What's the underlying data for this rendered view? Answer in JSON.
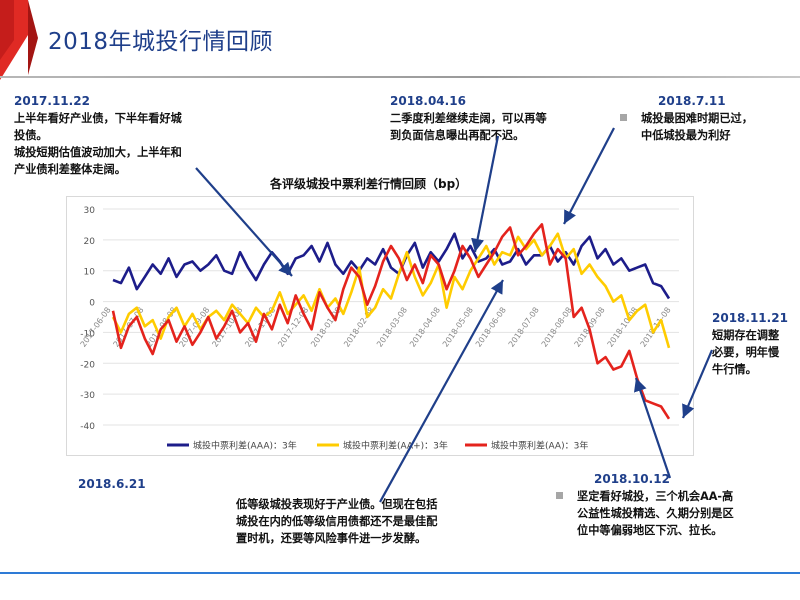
{
  "page": {
    "title": "2018年城投行情回顾"
  },
  "annotations": [
    {
      "id": "a1",
      "date": "2017.11.22",
      "lines": [
        "上半年看好产业债，下半年看好城",
        "投债。"
      ]
    },
    {
      "id": "a1b",
      "lines": [
        "城投短期估值波动加大，上半年和",
        "产业债利差整体走阔。"
      ]
    },
    {
      "id": "a2",
      "date": "2018.04.16",
      "lines": [
        "二季度利差继续走阔，可以再等",
        "到负面信息曝出再配不迟。"
      ]
    },
    {
      "id": "a3",
      "date": "2018.7.11",
      "lines": [
        "城投最困难时期已过，",
        "中低城投最为利好"
      ]
    },
    {
      "id": "a4",
      "date": "2018.11.21",
      "lines": [
        "短期存在调整",
        "必要，明年慢",
        "牛行情。"
      ]
    },
    {
      "id": "a5",
      "date": "2018.6.21",
      "lines": []
    },
    {
      "id": "a6",
      "lines": [
        "低等级城投表现好于产业债。但现在包括",
        "城投在内的低等级信用债都还不是最佳配",
        "置时机，还要等风险事件进一步发酵。"
      ]
    },
    {
      "id": "a7",
      "date": "2018.10.12",
      "lines": [
        "坚定看好城投，三个机会AA-高",
        "公益性城投精选、久期分别是区",
        "位中等偏弱地区下沉、拉长。"
      ]
    }
  ],
  "chart_data": {
    "type": "line",
    "title": "各评级城投中票利差行情回顾（bp）",
    "xlabel": "",
    "ylabel": "",
    "ylim": [
      -40,
      30
    ],
    "yticks": [
      30,
      20,
      10,
      0,
      -10,
      -20,
      -30,
      -40
    ],
    "xtick_labels": [
      "2017-06-08",
      "2017-07-08",
      "2017-08-08",
      "2017-09-08",
      "2017-10-08",
      "2017-11-08",
      "2017-12-08",
      "2018-01-08",
      "2018-02-08",
      "2018-03-08",
      "2018-04-08",
      "2018-05-08",
      "2018-06-08",
      "2018-07-08",
      "2018-08-08",
      "2018-09-08",
      "2018-10-08",
      "2018-11-08"
    ],
    "grid": true,
    "legend_position": "bottom",
    "series": [
      {
        "name": "城投中票利差(AAA)：3年",
        "color": "#1d1d8a",
        "values": [
          7,
          6,
          11,
          4,
          8,
          12,
          9,
          14,
          8,
          12,
          13,
          10,
          12,
          15,
          10,
          9,
          16,
          11,
          7,
          12,
          16,
          13,
          9,
          14,
          15,
          18,
          13,
          19,
          12,
          9,
          13,
          10,
          14,
          12,
          17,
          11,
          9,
          15,
          19,
          11,
          16,
          13,
          17,
          22,
          14,
          18,
          13,
          14,
          17,
          12,
          13,
          17,
          12,
          15,
          15,
          18,
          13,
          16,
          12,
          18,
          21,
          14,
          17,
          12,
          14,
          10,
          11,
          12,
          6,
          5,
          1
        ]
      },
      {
        "name": "城投中票利差(AA+)：3年",
        "color": "#ffcc00",
        "values": [
          -5,
          -10,
          -4,
          -2,
          -8,
          -6,
          -12,
          -5,
          -2,
          -8,
          -4,
          -9,
          -5,
          -3,
          -6,
          -1,
          -4,
          -7,
          -2,
          -5,
          -3,
          3,
          -4,
          -1,
          2,
          -3,
          4,
          -2,
          1,
          -4,
          3,
          11,
          -5,
          -2,
          4,
          1,
          9,
          16,
          8,
          2,
          6,
          12,
          -2,
          8,
          4,
          10,
          14,
          18,
          12,
          16,
          15,
          21,
          17,
          20,
          15,
          18,
          22,
          14,
          17,
          9,
          12,
          8,
          5,
          0,
          2,
          -6,
          -3,
          -1,
          -10,
          -6,
          -15
        ]
      },
      {
        "name": "城投中票利差(AA)：3年",
        "color": "#e4231d",
        "values": [
          -3,
          -15,
          -8,
          -5,
          -12,
          -17,
          -9,
          -6,
          -13,
          -8,
          -14,
          -10,
          -5,
          -12,
          -8,
          -3,
          -10,
          -7,
          -13,
          -4,
          -9,
          -1,
          -7,
          2,
          -4,
          -9,
          3,
          -2,
          -6,
          4,
          11,
          8,
          -1,
          5,
          13,
          18,
          14,
          7,
          12,
          6,
          15,
          12,
          4,
          10,
          18,
          14,
          8,
          12,
          16,
          21,
          24,
          15,
          18,
          22,
          25,
          12,
          17,
          14,
          -5,
          -2,
          -9,
          -20,
          -18,
          -22,
          -21,
          -16,
          -25,
          -32,
          -33,
          -34,
          -38
        ]
      }
    ]
  }
}
